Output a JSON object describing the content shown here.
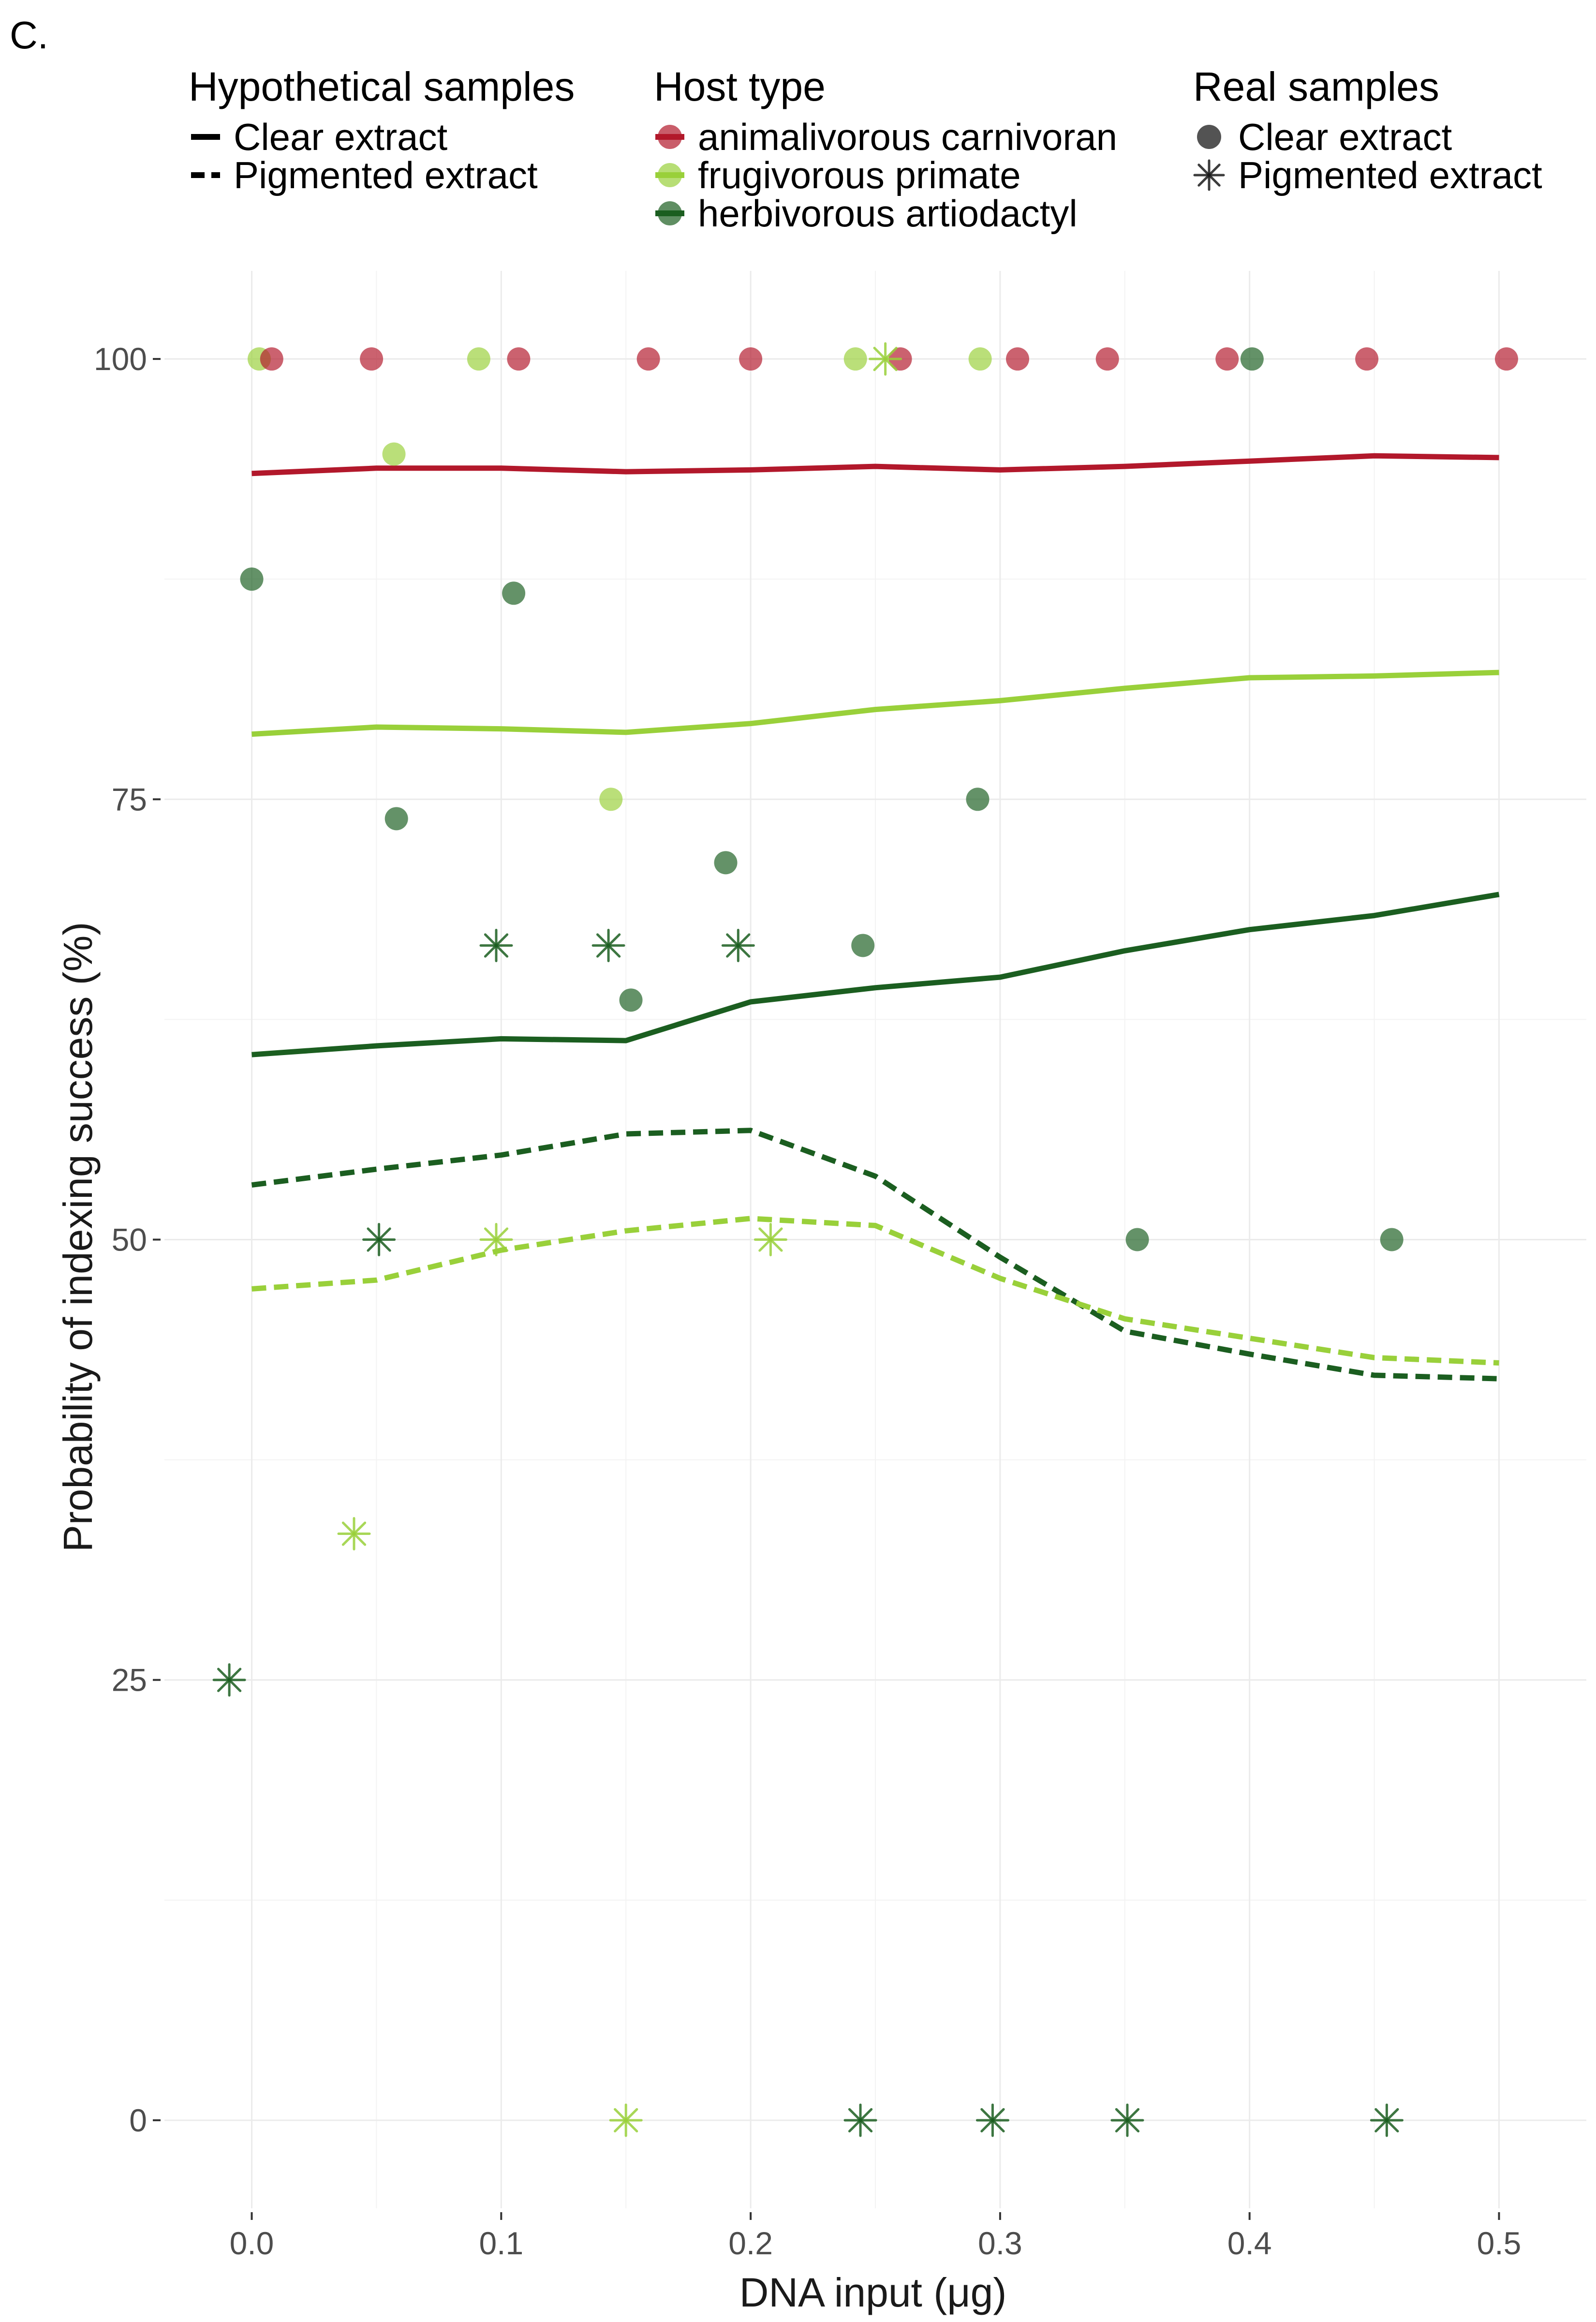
{
  "panel_label": "C.",
  "legends": {
    "hypothetical": {
      "title": "Hypothetical samples",
      "items": [
        {
          "label": "Clear extract",
          "linetype": "solid"
        },
        {
          "label": "Pigmented extract",
          "linetype": "dashed"
        }
      ]
    },
    "host_type": {
      "title": "Host type",
      "items": [
        {
          "label": "animalivorous carnivoran",
          "color": "#B2182B"
        },
        {
          "label": "frugivorous primate",
          "color": "#99D03A"
        },
        {
          "label": "herbivorous artiodactyl",
          "color": "#1B5E20"
        }
      ]
    },
    "real": {
      "title": "Real samples",
      "items": [
        {
          "label": "Clear extract",
          "shape": "circle"
        },
        {
          "label": "Pigmented extract",
          "shape": "asterisk"
        }
      ]
    }
  },
  "chart_data": {
    "type": "line",
    "xlabel": "DNA input (μg)",
    "ylabel": "Probability of indexing success (%)",
    "xlim": [
      -0.035,
      0.535
    ],
    "ylim": [
      -5,
      105
    ],
    "xticks": [
      0.0,
      0.1,
      0.2,
      0.3,
      0.4,
      0.5
    ],
    "xtick_labels": [
      "0.0",
      "0.1",
      "0.2",
      "0.3",
      "0.4",
      "0.5"
    ],
    "yticks": [
      0,
      25,
      50,
      75,
      100
    ],
    "ytick_labels": [
      "0",
      "25",
      "50",
      "75",
      "100"
    ],
    "grid": true,
    "x": [
      0.0,
      0.05,
      0.1,
      0.15,
      0.2,
      0.25,
      0.3,
      0.35,
      0.4,
      0.45,
      0.5
    ],
    "series": [
      {
        "host": "animalivorous carnivoran",
        "extract": "Clear extract",
        "color": "#B2182B",
        "values": [
          93.5,
          93.8,
          93.8,
          93.6,
          93.7,
          93.9,
          93.7,
          93.9,
          94.2,
          94.5,
          94.4
        ]
      },
      {
        "host": "frugivorous primate",
        "extract": "Clear extract",
        "color": "#99D03A",
        "values": [
          78.7,
          79.1,
          79.0,
          78.8,
          79.3,
          80.1,
          80.6,
          81.3,
          81.9,
          82.0,
          82.2
        ]
      },
      {
        "host": "herbivorous artiodactyl",
        "extract": "Clear extract",
        "color": "#1B5E20",
        "values": [
          60.5,
          61.0,
          61.4,
          61.3,
          63.5,
          64.3,
          64.9,
          66.4,
          67.6,
          68.4,
          69.6
        ]
      },
      {
        "host": "herbivorous artiodactyl",
        "extract": "Pigmented extract",
        "color": "#1B5E20",
        "values": [
          53.1,
          54.0,
          54.8,
          56.0,
          56.2,
          53.6,
          49.0,
          44.8,
          43.5,
          42.3,
          42.1
        ]
      },
      {
        "host": "frugivorous primate",
        "extract": "Pigmented extract",
        "color": "#99D03A",
        "values": [
          47.2,
          47.7,
          49.4,
          50.5,
          51.2,
          50.8,
          47.8,
          45.5,
          44.4,
          43.3,
          43.0
        ]
      }
    ],
    "points": [
      {
        "x": 0.003,
        "y": 100,
        "host": "frugivorous primate",
        "extract": "Clear extract"
      },
      {
        "x": 0.008,
        "y": 100,
        "host": "animalivorous carnivoran",
        "extract": "Clear extract"
      },
      {
        "x": 0.048,
        "y": 100,
        "host": "animalivorous carnivoran",
        "extract": "Clear extract"
      },
      {
        "x": 0.091,
        "y": 100,
        "host": "frugivorous primate",
        "extract": "Clear extract"
      },
      {
        "x": 0.107,
        "y": 100,
        "host": "animalivorous carnivoran",
        "extract": "Clear extract"
      },
      {
        "x": 0.159,
        "y": 100,
        "host": "animalivorous carnivoran",
        "extract": "Clear extract"
      },
      {
        "x": 0.2,
        "y": 100,
        "host": "animalivorous carnivoran",
        "extract": "Clear extract"
      },
      {
        "x": 0.242,
        "y": 100,
        "host": "frugivorous primate",
        "extract": "Clear extract"
      },
      {
        "x": 0.26,
        "y": 100,
        "host": "animalivorous carnivoran",
        "extract": "Clear extract"
      },
      {
        "x": 0.292,
        "y": 100,
        "host": "frugivorous primate",
        "extract": "Clear extract"
      },
      {
        "x": 0.307,
        "y": 100,
        "host": "animalivorous carnivoran",
        "extract": "Clear extract"
      },
      {
        "x": 0.343,
        "y": 100,
        "host": "animalivorous carnivoran",
        "extract": "Clear extract"
      },
      {
        "x": 0.391,
        "y": 100,
        "host": "animalivorous carnivoran",
        "extract": "Clear extract"
      },
      {
        "x": 0.401,
        "y": 100,
        "host": "herbivorous artiodactyl",
        "extract": "Clear extract"
      },
      {
        "x": 0.447,
        "y": 100,
        "host": "animalivorous carnivoran",
        "extract": "Clear extract"
      },
      {
        "x": 0.503,
        "y": 100,
        "host": "animalivorous carnivoran",
        "extract": "Clear extract"
      },
      {
        "x": 0.057,
        "y": 94.6,
        "host": "frugivorous primate",
        "extract": "Clear extract"
      },
      {
        "x": 0.0,
        "y": 87.5,
        "host": "herbivorous artiodactyl",
        "extract": "Clear extract"
      },
      {
        "x": 0.105,
        "y": 86.7,
        "host": "herbivorous artiodactyl",
        "extract": "Clear extract"
      },
      {
        "x": 0.058,
        "y": 73.9,
        "host": "herbivorous artiodactyl",
        "extract": "Clear extract"
      },
      {
        "x": 0.144,
        "y": 75,
        "host": "frugivorous primate",
        "extract": "Clear extract"
      },
      {
        "x": 0.291,
        "y": 75,
        "host": "herbivorous artiodactyl",
        "extract": "Clear extract"
      },
      {
        "x": 0.19,
        "y": 71.4,
        "host": "herbivorous artiodactyl",
        "extract": "Clear extract"
      },
      {
        "x": 0.245,
        "y": 66.7,
        "host": "herbivorous artiodactyl",
        "extract": "Clear extract"
      },
      {
        "x": 0.152,
        "y": 63.6,
        "host": "herbivorous artiodactyl",
        "extract": "Clear extract"
      },
      {
        "x": 0.355,
        "y": 50,
        "host": "herbivorous artiodactyl",
        "extract": "Clear extract"
      },
      {
        "x": 0.457,
        "y": 50,
        "host": "herbivorous artiodactyl",
        "extract": "Clear extract"
      },
      {
        "x": 0.254,
        "y": 100,
        "host": "frugivorous primate",
        "extract": "Pigmented extract"
      },
      {
        "x": 0.098,
        "y": 66.7,
        "host": "herbivorous artiodactyl",
        "extract": "Pigmented extract"
      },
      {
        "x": 0.143,
        "y": 66.7,
        "host": "herbivorous artiodactyl",
        "extract": "Pigmented extract"
      },
      {
        "x": 0.195,
        "y": 66.7,
        "host": "herbivorous artiodactyl",
        "extract": "Pigmented extract"
      },
      {
        "x": 0.051,
        "y": 50,
        "host": "herbivorous artiodactyl",
        "extract": "Pigmented extract"
      },
      {
        "x": 0.098,
        "y": 50,
        "host": "frugivorous primate",
        "extract": "Pigmented extract"
      },
      {
        "x": 0.208,
        "y": 50,
        "host": "frugivorous primate",
        "extract": "Pigmented extract"
      },
      {
        "x": 0.041,
        "y": 33.3,
        "host": "frugivorous primate",
        "extract": "Pigmented extract"
      },
      {
        "x": -0.009,
        "y": 25,
        "host": "herbivorous artiodactyl",
        "extract": "Pigmented extract"
      },
      {
        "x": 0.15,
        "y": 0,
        "host": "frugivorous primate",
        "extract": "Pigmented extract"
      },
      {
        "x": 0.244,
        "y": 0,
        "host": "herbivorous artiodactyl",
        "extract": "Pigmented extract"
      },
      {
        "x": 0.297,
        "y": 0,
        "host": "herbivorous artiodactyl",
        "extract": "Pigmented extract"
      },
      {
        "x": 0.351,
        "y": 0,
        "host": "herbivorous artiodactyl",
        "extract": "Pigmented extract"
      },
      {
        "x": 0.455,
        "y": 0,
        "host": "herbivorous artiodactyl",
        "extract": "Pigmented extract"
      }
    ]
  }
}
